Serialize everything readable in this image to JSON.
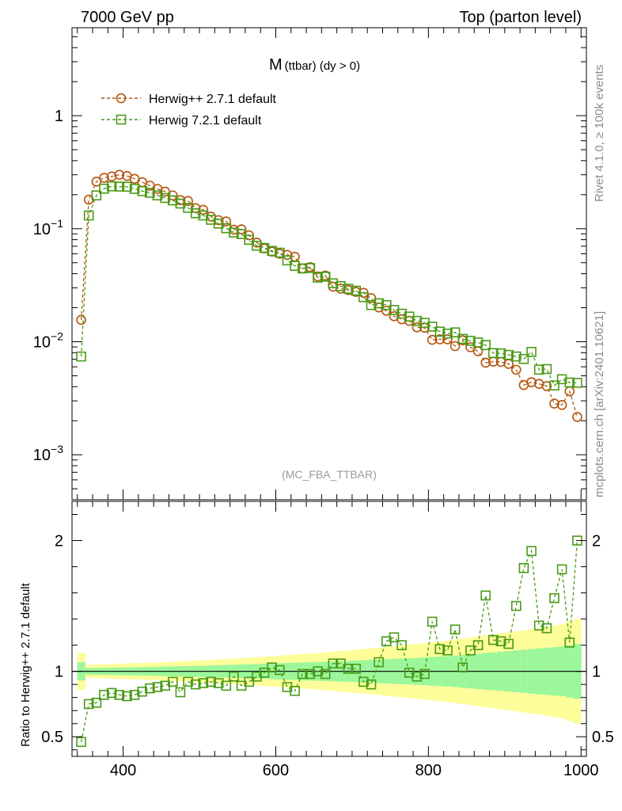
{
  "header": {
    "left": "7000 GeV pp",
    "right": "Top (parton level)"
  },
  "side_labels": {
    "rivet": "Rivet 4.1.0, ≥ 100k events",
    "mcplots": "mcplots.cern.ch [arXiv:2401.10621]"
  },
  "chart_data": [
    {
      "type": "line",
      "panel": "main",
      "title_main": "M",
      "title_sub": "(ttbar) (dy > 0)",
      "watermark": "(MC_FBA_TTBAR)",
      "xlabel": "",
      "ylabel": "",
      "xlim": [
        333,
        1007
      ],
      "yscale": "log",
      "ylim": [
        0.0004,
        6
      ],
      "yticks": [
        {
          "value": 1,
          "base": "1",
          "exp": ""
        },
        {
          "value": 0.1,
          "base": "10",
          "exp": "−1"
        },
        {
          "value": 0.01,
          "base": "10",
          "exp": "−2"
        },
        {
          "value": 0.001,
          "base": "10",
          "exp": "−3"
        }
      ],
      "legend_position": "top-left",
      "x": [
        345,
        355,
        365,
        375,
        385,
        395,
        405,
        415,
        425,
        435,
        445,
        455,
        465,
        475,
        485,
        495,
        505,
        515,
        525,
        535,
        545,
        555,
        565,
        575,
        585,
        595,
        605,
        615,
        625,
        635,
        645,
        655,
        665,
        675,
        685,
        695,
        705,
        715,
        725,
        735,
        745,
        755,
        765,
        775,
        785,
        795,
        805,
        815,
        825,
        835,
        845,
        855,
        865,
        875,
        885,
        895,
        905,
        915,
        925,
        935,
        945,
        955,
        965,
        975,
        985,
        995
      ],
      "series": [
        {
          "name": "Herwig++ 2.7.1 default",
          "color": "#b5530b",
          "marker": "circle",
          "values": [
            0.0156,
            0.181,
            0.261,
            0.282,
            0.29,
            0.3,
            0.293,
            0.276,
            0.258,
            0.24,
            0.225,
            0.213,
            0.197,
            0.179,
            0.176,
            0.152,
            0.147,
            0.128,
            0.119,
            0.116,
            0.098,
            0.0987,
            0.0874,
            0.0754,
            0.0669,
            0.0627,
            0.0601,
            0.0587,
            0.0565,
            0.0445,
            0.0457,
            0.0378,
            0.0385,
            0.0307,
            0.0295,
            0.0287,
            0.0276,
            0.0271,
            0.0243,
            0.0201,
            0.0188,
            0.0168,
            0.0158,
            0.0153,
            0.0134,
            0.0133,
            0.0104,
            0.0105,
            0.0105,
            0.00915,
            0.0103,
            0.00895,
            0.00823,
            0.00653,
            0.00666,
            0.00663,
            0.00637,
            0.00565,
            0.00414,
            0.00439,
            0.00424,
            0.00405,
            0.00284,
            0.00276,
            0.00364,
            0.00216
          ]
        },
        {
          "name": "Herwig 7.2.1 default",
          "color": "#4a9a16",
          "marker": "square",
          "values": [
            0.0074,
            0.131,
            0.197,
            0.226,
            0.237,
            0.236,
            0.235,
            0.225,
            0.215,
            0.208,
            0.197,
            0.187,
            0.178,
            0.167,
            0.153,
            0.137,
            0.131,
            0.12,
            0.111,
            0.101,
            0.0925,
            0.0896,
            0.0797,
            0.0707,
            0.0676,
            0.0636,
            0.0614,
            0.0524,
            0.0469,
            0.0445,
            0.0449,
            0.0369,
            0.0376,
            0.0329,
            0.031,
            0.0294,
            0.0283,
            0.0248,
            0.0211,
            0.0219,
            0.0211,
            0.0191,
            0.0177,
            0.0167,
            0.0153,
            0.0147,
            0.0136,
            0.0123,
            0.0118,
            0.0121,
            0.0106,
            0.0102,
            0.00985,
            0.00934,
            0.00794,
            0.0079,
            0.00765,
            0.00741,
            0.00704,
            0.00813,
            0.00566,
            0.00573,
            0.0041,
            0.00466,
            0.00436,
            0.00433
          ]
        }
      ]
    },
    {
      "type": "line",
      "panel": "ratio",
      "ylabel": "Ratio to Herwig++ 2.7.1 default",
      "xlim": [
        333,
        1007
      ],
      "ylim": [
        0.35,
        2.3
      ],
      "xticks": [
        400,
        600,
        800,
        1000
      ],
      "yticks": [
        0.5,
        1,
        2
      ],
      "reference_line": 1,
      "x": [
        345,
        355,
        365,
        375,
        385,
        395,
        405,
        415,
        425,
        435,
        445,
        455,
        465,
        475,
        485,
        495,
        505,
        515,
        525,
        535,
        545,
        555,
        565,
        575,
        585,
        595,
        605,
        615,
        625,
        635,
        645,
        655,
        665,
        675,
        685,
        695,
        705,
        715,
        725,
        735,
        745,
        755,
        765,
        775,
        785,
        795,
        805,
        815,
        825,
        835,
        845,
        855,
        865,
        875,
        885,
        895,
        905,
        915,
        925,
        935,
        945,
        955,
        965,
        975,
        985,
        995
      ],
      "green_band_halfwidth": [
        0.07,
        0.025,
        0.026,
        0.027,
        0.028,
        0.029,
        0.03,
        0.031,
        0.032,
        0.033,
        0.035,
        0.036,
        0.037,
        0.039,
        0.04,
        0.042,
        0.043,
        0.045,
        0.046,
        0.048,
        0.05,
        0.052,
        0.054,
        0.056,
        0.058,
        0.06,
        0.062,
        0.064,
        0.066,
        0.068,
        0.07,
        0.072,
        0.074,
        0.076,
        0.078,
        0.08,
        0.082,
        0.085,
        0.088,
        0.09,
        0.093,
        0.095,
        0.098,
        0.1,
        0.103,
        0.106,
        0.11,
        0.113,
        0.116,
        0.12,
        0.125,
        0.13,
        0.135,
        0.14,
        0.145,
        0.15,
        0.155,
        0.16,
        0.165,
        0.17,
        0.175,
        0.18,
        0.185,
        0.19,
        0.2,
        0.21
      ],
      "yellow_band_halfwidth": [
        0.14,
        0.05,
        0.052,
        0.054,
        0.056,
        0.058,
        0.06,
        0.062,
        0.064,
        0.066,
        0.068,
        0.07,
        0.073,
        0.076,
        0.079,
        0.082,
        0.085,
        0.088,
        0.091,
        0.094,
        0.097,
        0.1,
        0.104,
        0.108,
        0.112,
        0.116,
        0.12,
        0.124,
        0.128,
        0.132,
        0.136,
        0.14,
        0.145,
        0.15,
        0.155,
        0.16,
        0.165,
        0.17,
        0.175,
        0.18,
        0.186,
        0.192,
        0.198,
        0.204,
        0.21,
        0.216,
        0.222,
        0.228,
        0.235,
        0.242,
        0.25,
        0.258,
        0.266,
        0.274,
        0.282,
        0.29,
        0.298,
        0.306,
        0.314,
        0.322,
        0.33,
        0.34,
        0.35,
        0.36,
        0.38,
        0.4
      ],
      "series": [
        {
          "name": "Herwig 7.2.1 default",
          "color": "#4a9a16",
          "marker": "square",
          "values": [
            0.46,
            0.75,
            0.76,
            0.82,
            0.835,
            0.82,
            0.81,
            0.82,
            0.845,
            0.87,
            0.88,
            0.89,
            0.92,
            0.84,
            0.92,
            0.9,
            0.91,
            0.92,
            0.91,
            0.89,
            0.96,
            0.89,
            0.92,
            0.96,
            0.99,
            1.03,
            1.01,
            0.88,
            0.85,
            0.98,
            0.98,
            1.0,
            0.98,
            1.06,
            1.06,
            1.02,
            1.02,
            0.92,
            0.9,
            1.07,
            1.23,
            1.26,
            1.2,
            0.99,
            0.96,
            0.98,
            1.38,
            1.17,
            1.16,
            1.32,
            1.03,
            1.16,
            1.2,
            1.58,
            1.24,
            1.23,
            1.21,
            1.5,
            1.79,
            1.92,
            1.35,
            1.33,
            1.56,
            1.78,
            1.22,
            2.0
          ]
        }
      ]
    }
  ]
}
